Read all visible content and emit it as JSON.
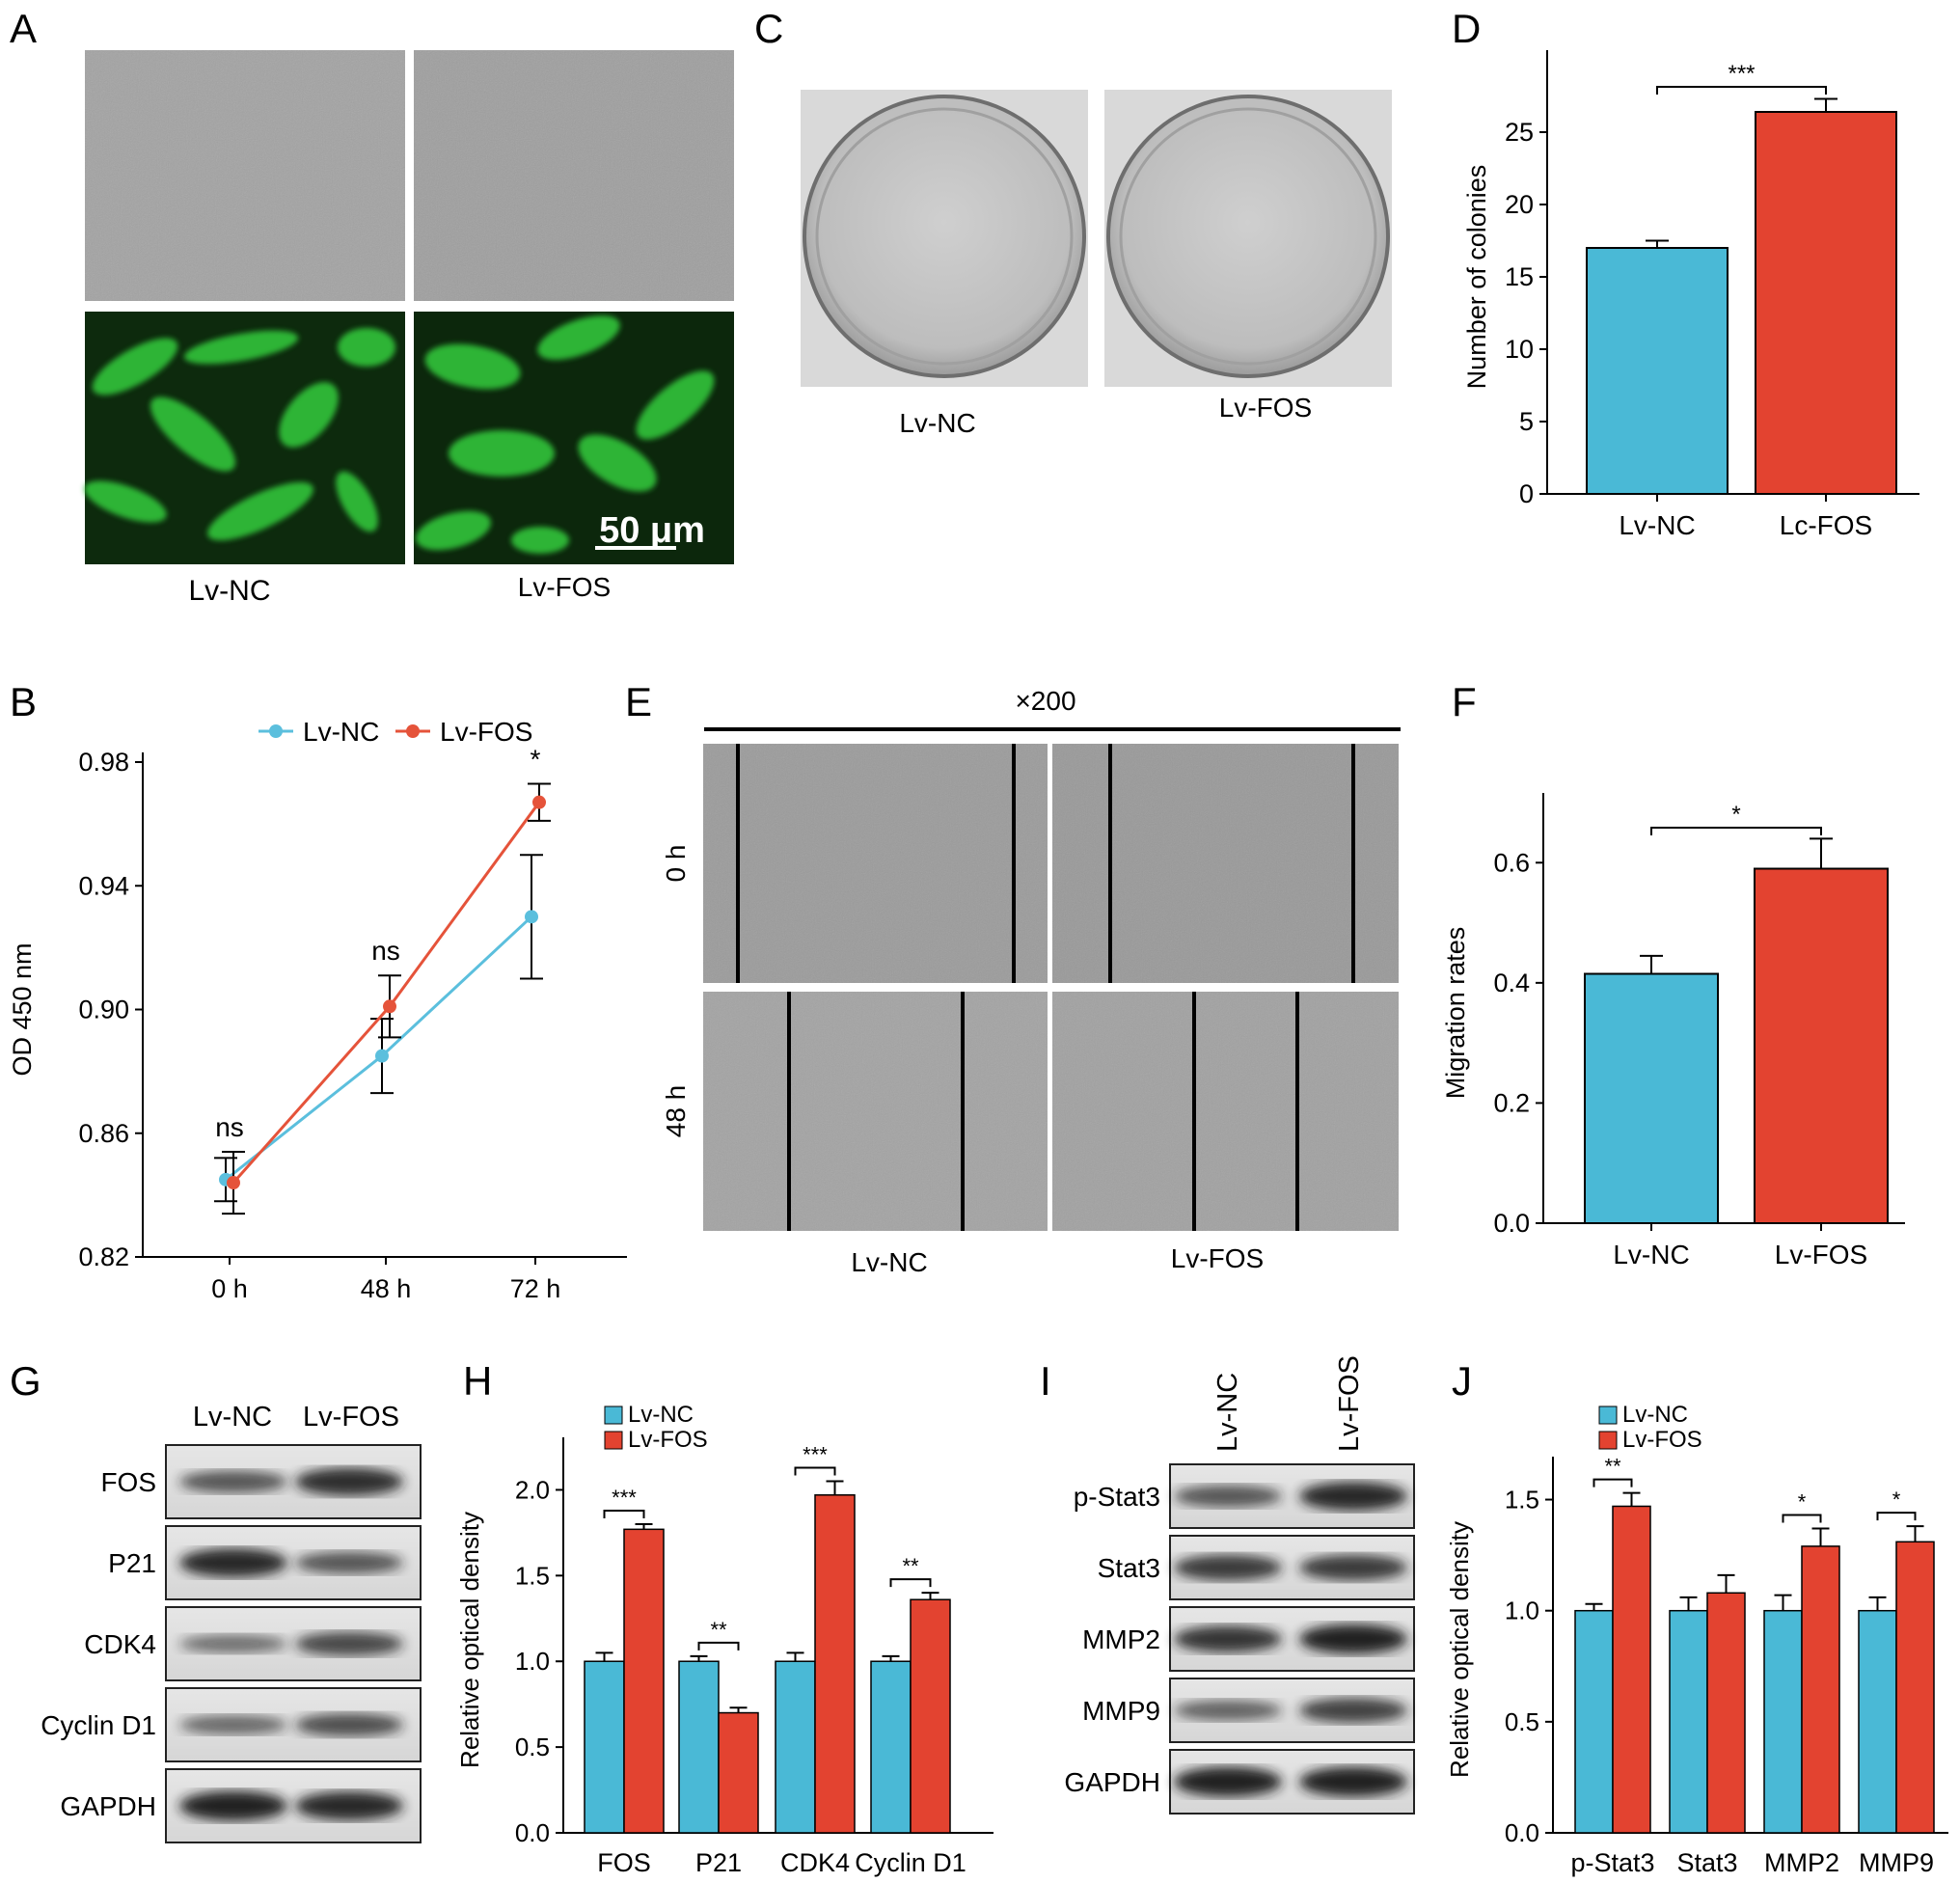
{
  "panel_letters": [
    "A",
    "B",
    "C",
    "D",
    "E",
    "F",
    "G",
    "H",
    "I",
    "J"
  ],
  "colors": {
    "nc": "#4ab9d6",
    "fos": "#e34330",
    "nc_line": "#5bbfdd",
    "fos_line": "#e5533a",
    "green": "#31c43a",
    "micro": "#9a9a9a"
  },
  "panelA": {
    "labels": [
      "Lv-NC",
      "Lv-FOS"
    ],
    "scale_bar": "50 μm"
  },
  "panelC": {
    "labels": [
      "Lv-NC",
      "Lv-FOS"
    ]
  },
  "panelE": {
    "magnification": "×200",
    "rows": [
      "0 h",
      "48 h"
    ],
    "labels": [
      "Lv-NC",
      "Lv-FOS"
    ]
  },
  "panelG": {
    "lanes": [
      "Lv-NC",
      "Lv-FOS"
    ],
    "bands": [
      "FOS",
      "P21",
      "CDK4",
      "Cyclin D1",
      "GAPDH"
    ]
  },
  "panelI": {
    "lanes": [
      "Lv-NC",
      "Lv-FOS"
    ],
    "bands": [
      "p-Stat3",
      "Stat3",
      "MMP2",
      "MMP9",
      "GAPDH"
    ]
  },
  "chart_data": [
    {
      "panel": "B",
      "type": "line",
      "ylabel": "OD 450 nm",
      "categories": [
        "0 h",
        "48 h",
        "72 h"
      ],
      "ylim": [
        0.82,
        0.98
      ],
      "yticks": [
        "0.82",
        "0.86",
        "0.90",
        "0.94",
        "0.98"
      ],
      "legend": [
        "Lv-NC",
        "Lv-FOS"
      ],
      "series": [
        {
          "name": "Lv-NC",
          "values": [
            0.845,
            0.885,
            0.93
          ],
          "errors": [
            0.007,
            0.012,
            0.02
          ]
        },
        {
          "name": "Lv-FOS",
          "values": [
            0.844,
            0.901,
            0.967
          ],
          "errors": [
            0.01,
            0.01,
            0.006
          ]
        }
      ],
      "annotations": [
        "ns",
        "ns",
        "*"
      ]
    },
    {
      "panel": "D",
      "type": "bar",
      "ylabel": "Number of colonies",
      "categories": [
        "Lv-NC",
        "Lc-FOS"
      ],
      "values": [
        17,
        26.4
      ],
      "errors": [
        0.5,
        0.9
      ],
      "ylim": [
        0,
        30
      ],
      "yticks": [
        "0",
        "5",
        "10",
        "15",
        "20",
        "25"
      ],
      "significance": "***"
    },
    {
      "panel": "F",
      "type": "bar",
      "ylabel": "Migration rates",
      "categories": [
        "Lv-NC",
        "Lv-FOS"
      ],
      "values": [
        0.415,
        0.59
      ],
      "errors": [
        0.03,
        0.05
      ],
      "ylim": [
        0,
        0.7
      ],
      "yticks": [
        "0.0",
        "0.2",
        "0.4",
        "0.6"
      ],
      "significance": "*"
    },
    {
      "panel": "H",
      "type": "bar",
      "ylabel": "Relative optical density",
      "categories": [
        "FOS",
        "P21",
        "CDK4",
        "Cyclin D1"
      ],
      "legend": [
        "Lv-NC",
        "Lv-FOS"
      ],
      "ylim": [
        0,
        2.25
      ],
      "yticks": [
        "0.0",
        "0.5",
        "1.0",
        "1.5",
        "2.0"
      ],
      "series": [
        {
          "name": "Lv-NC",
          "values": [
            1.0,
            1.0,
            1.0,
            1.0
          ],
          "errors": [
            0.05,
            0.03,
            0.05,
            0.03
          ]
        },
        {
          "name": "Lv-FOS",
          "values": [
            1.77,
            0.7,
            1.97,
            1.36
          ],
          "errors": [
            0.03,
            0.03,
            0.08,
            0.04
          ]
        }
      ],
      "annotations": [
        "***",
        "**",
        "***",
        "**"
      ]
    },
    {
      "panel": "J",
      "type": "bar",
      "ylabel": "Relative optical density",
      "categories": [
        "p-Stat3",
        "Stat3",
        "MMP2",
        "MMP9"
      ],
      "legend": [
        "Lv-NC",
        "Lv-FOS"
      ],
      "ylim": [
        0,
        1.65
      ],
      "yticks": [
        "0.0",
        "0.5",
        "1.0",
        "1.5"
      ],
      "series": [
        {
          "name": "Lv-NC",
          "values": [
            1.0,
            1.0,
            1.0,
            1.0
          ],
          "errors": [
            0.03,
            0.06,
            0.07,
            0.06
          ]
        },
        {
          "name": "Lv-FOS",
          "values": [
            1.47,
            1.08,
            1.29,
            1.31
          ],
          "errors": [
            0.06,
            0.08,
            0.08,
            0.07
          ]
        }
      ],
      "annotations": [
        "**",
        "",
        "*",
        "*"
      ]
    }
  ]
}
